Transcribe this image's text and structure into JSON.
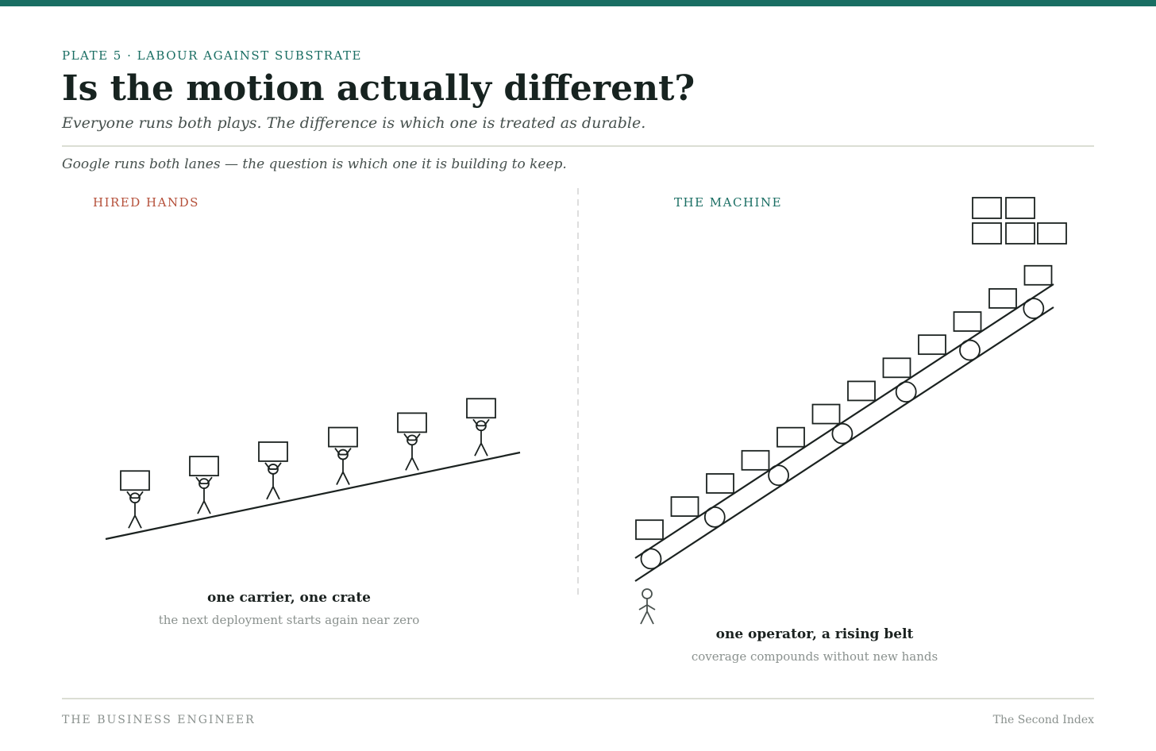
{
  "header": {
    "kicker": "PLATE 5 · LABOUR AGAINST SUBSTRATE",
    "title": "Is the motion actually different?",
    "subtitle": "Everyone runs both plays. The difference is which one is treated as durable."
  },
  "caption": "Google runs both lanes — the question is which one it is building to keep.",
  "panels": [
    {
      "label": "HIRED HANDS",
      "title": "one carrier, one crate",
      "note": "the next deployment starts again near zero"
    },
    {
      "label": "THE MACHINE",
      "title": "one operator, a rising belt",
      "note": "coverage compounds without new hands"
    }
  ],
  "footer": {
    "left": "THE BUSINESS ENGINEER",
    "right": "The Second Index"
  }
}
